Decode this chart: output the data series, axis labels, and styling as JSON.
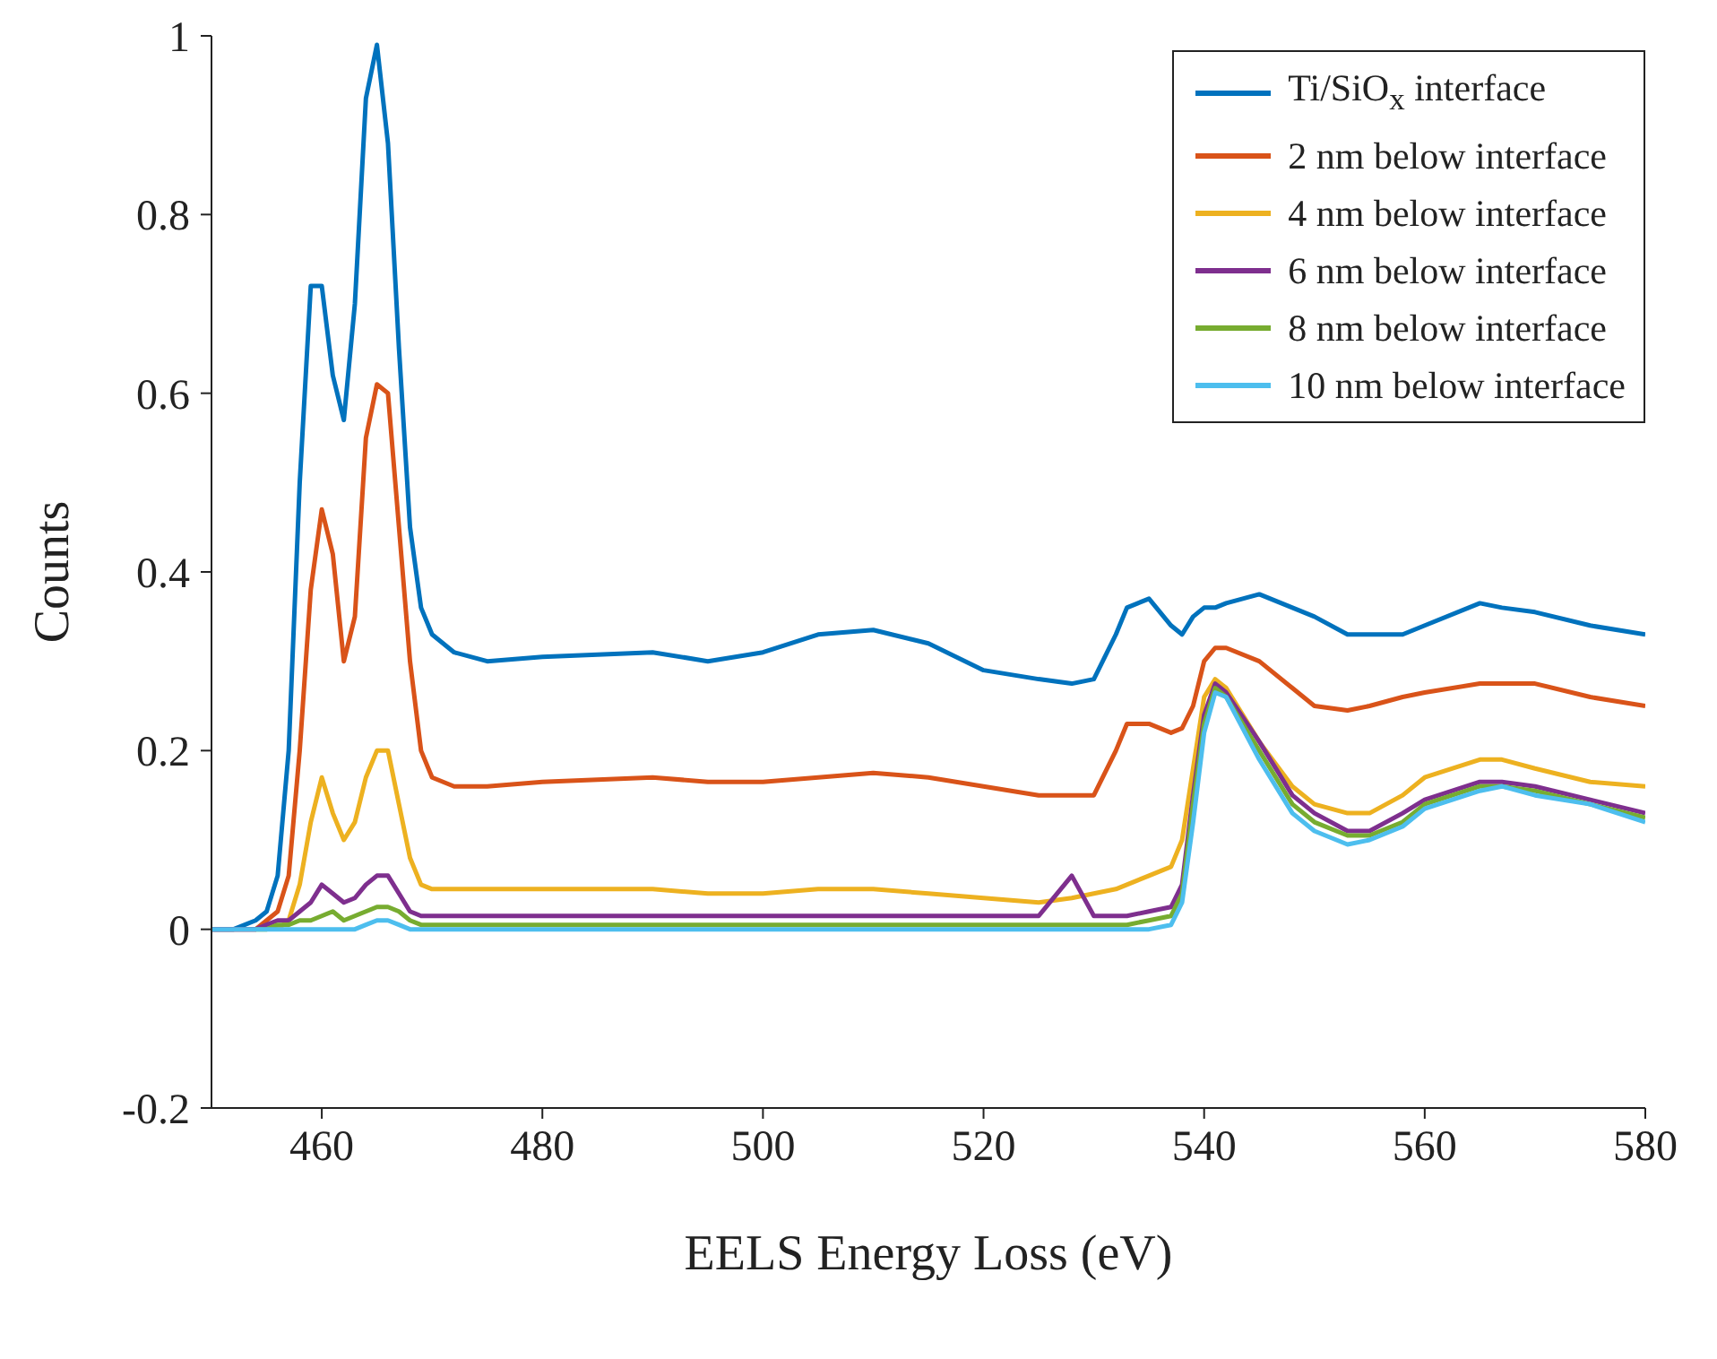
{
  "chart_data": {
    "type": "line",
    "xlabel": "EELS Energy Loss (eV)",
    "ylabel": "Counts",
    "xlim": [
      450,
      580
    ],
    "xticks": [
      460,
      480,
      500,
      520,
      540,
      560,
      580
    ],
    "ylim": [
      -0.2,
      1
    ],
    "yticks": [
      -0.2,
      0,
      0.2,
      0.4,
      0.6,
      0.8,
      1
    ],
    "grid": false,
    "legend": "top right",
    "marker": "none",
    "line_style": "solid",
    "x": [
      450,
      452,
      454,
      455,
      456,
      457,
      458,
      459,
      460,
      461,
      462,
      463,
      464,
      465,
      466,
      467,
      468,
      469,
      470,
      472,
      475,
      480,
      490,
      495,
      500,
      505,
      510,
      515,
      520,
      525,
      528,
      530,
      532,
      533,
      535,
      537,
      538,
      539,
      540,
      541,
      542,
      545,
      548,
      550,
      553,
      555,
      558,
      560,
      565,
      567,
      570,
      575,
      580
    ],
    "series": [
      {
        "name": "Ti/SiO$_{x}$ interface",
        "color": "#0072bd",
        "values": [
          0,
          0,
          0.01,
          0.02,
          0.06,
          0.2,
          0.5,
          0.72,
          0.72,
          0.62,
          0.57,
          0.7,
          0.93,
          0.99,
          0.88,
          0.65,
          0.45,
          0.36,
          0.33,
          0.31,
          0.3,
          0.305,
          0.31,
          0.3,
          0.31,
          0.33,
          0.335,
          0.32,
          0.29,
          0.28,
          0.275,
          0.28,
          0.33,
          0.36,
          0.37,
          0.34,
          0.33,
          0.35,
          0.36,
          0.36,
          0.365,
          0.375,
          0.36,
          0.35,
          0.33,
          0.33,
          0.33,
          0.34,
          0.365,
          0.36,
          0.355,
          0.34,
          0.33
        ]
      },
      {
        "name": "2 nm below interface",
        "color": "#d95319",
        "values": [
          0,
          0,
          0,
          0.01,
          0.02,
          0.06,
          0.2,
          0.38,
          0.47,
          0.42,
          0.3,
          0.35,
          0.55,
          0.61,
          0.6,
          0.45,
          0.3,
          0.2,
          0.17,
          0.16,
          0.16,
          0.165,
          0.17,
          0.165,
          0.165,
          0.17,
          0.175,
          0.17,
          0.16,
          0.15,
          0.15,
          0.15,
          0.2,
          0.23,
          0.23,
          0.22,
          0.225,
          0.25,
          0.3,
          0.315,
          0.315,
          0.3,
          0.27,
          0.25,
          0.245,
          0.25,
          0.26,
          0.265,
          0.275,
          0.275,
          0.275,
          0.26,
          0.25
        ]
      },
      {
        "name": "4 nm below interface",
        "color": "#edb120",
        "values": [
          null,
          null,
          null,
          null,
          0,
          0.01,
          0.05,
          0.12,
          0.17,
          0.13,
          0.1,
          0.12,
          0.17,
          0.2,
          0.2,
          0.14,
          0.08,
          0.05,
          0.045,
          0.045,
          0.045,
          0.045,
          0.045,
          0.04,
          0.04,
          0.045,
          0.045,
          0.04,
          0.035,
          0.03,
          0.035,
          0.04,
          0.045,
          0.05,
          0.06,
          0.07,
          0.1,
          0.18,
          0.26,
          0.28,
          0.27,
          0.21,
          0.16,
          0.14,
          0.13,
          0.13,
          0.15,
          0.17,
          0.19,
          0.19,
          0.18,
          0.165,
          0.16
        ]
      },
      {
        "name": "6 nm below interface",
        "color": "#7e2f8e",
        "values": [
          0,
          0,
          0,
          0.005,
          0.01,
          0.01,
          0.02,
          0.03,
          0.05,
          0.04,
          0.03,
          0.035,
          0.05,
          0.06,
          0.06,
          0.04,
          0.02,
          0.015,
          0.015,
          0.015,
          0.015,
          0.015,
          0.015,
          0.015,
          0.015,
          0.015,
          0.015,
          0.015,
          0.015,
          0.015,
          0.06,
          0.015,
          0.015,
          0.015,
          0.02,
          0.025,
          0.05,
          0.15,
          0.24,
          0.275,
          0.265,
          0.21,
          0.15,
          0.13,
          0.11,
          0.11,
          0.13,
          0.145,
          0.165,
          0.165,
          0.16,
          0.145,
          0.13
        ]
      },
      {
        "name": "8 nm below interface",
        "color": "#77ac30",
        "values": [
          null,
          null,
          0,
          0,
          0.005,
          0.005,
          0.01,
          0.01,
          0.015,
          0.02,
          0.01,
          0.015,
          0.02,
          0.025,
          0.025,
          0.02,
          0.01,
          0.005,
          0.005,
          0.005,
          0.005,
          0.005,
          0.005,
          0.005,
          0.005,
          0.005,
          0.005,
          0.005,
          0.005,
          0.005,
          0.005,
          0.005,
          0.005,
          0.005,
          0.01,
          0.015,
          0.04,
          0.14,
          0.23,
          0.27,
          0.26,
          0.2,
          0.14,
          0.12,
          0.105,
          0.105,
          0.12,
          0.14,
          0.16,
          0.16,
          0.155,
          0.14,
          0.125
        ]
      },
      {
        "name": "10 nm below interface",
        "color": "#4dbeee",
        "values": [
          0,
          0,
          0,
          0,
          0,
          0,
          0,
          0,
          0,
          0,
          0,
          0,
          0.005,
          0.01,
          0.01,
          0.005,
          0,
          0,
          0,
          0,
          0,
          0,
          0,
          0,
          0,
          0,
          0,
          0,
          0,
          0,
          0,
          0,
          0,
          0,
          0,
          0.005,
          0.03,
          0.12,
          0.22,
          0.265,
          0.26,
          0.19,
          0.13,
          0.11,
          0.095,
          0.1,
          0.115,
          0.135,
          0.155,
          0.16,
          0.15,
          0.14,
          0.12
        ]
      }
    ]
  }
}
